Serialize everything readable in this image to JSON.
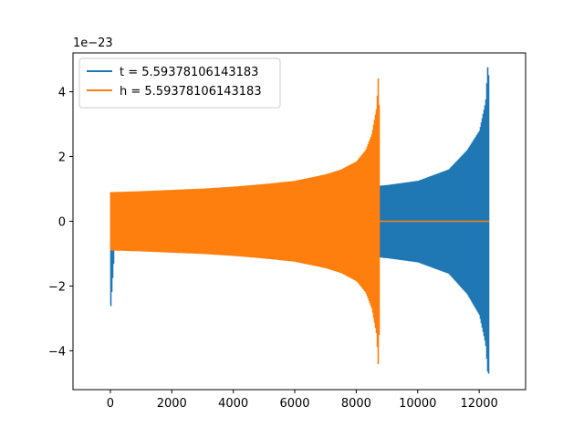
{
  "chart_data": {
    "type": "line",
    "title": "",
    "xlabel": "",
    "ylabel": "",
    "y_offset_label": "1e−23",
    "xlim": [
      -1215,
      13510
    ],
    "ylim": [
      -5.2,
      5.2
    ],
    "x_ticks": [
      0,
      2000,
      4000,
      6000,
      8000,
      10000,
      12000
    ],
    "y_ticks": [
      -4,
      -2,
      0,
      2,
      4
    ],
    "y_tick_labels": [
      "−4",
      "−2",
      "0",
      "2",
      "4"
    ],
    "grid": false,
    "legend_position": "upper-left",
    "series": [
      {
        "name": "t = 5.59378106143183",
        "color": "#1f77b4",
        "x": [
          0,
          120,
          1000,
          2000,
          3000,
          4000,
          5000,
          6000,
          7000,
          8000,
          8650,
          8720,
          8760,
          9000,
          10000,
          11000,
          11600,
          12000,
          12200,
          12270,
          12300
        ],
        "envelope_upper": [
          0.9,
          0.9,
          0.9,
          0.94,
          0.98,
          1.01,
          1.06,
          1.11,
          1.11,
          1.11,
          1.11,
          1.11,
          1.1,
          1.12,
          1.25,
          1.6,
          2.2,
          2.8,
          3.7,
          4.87,
          4.4
        ],
        "envelope_lower": [
          -2.65,
          -0.9,
          -0.9,
          -0.94,
          -0.98,
          -1.01,
          -1.06,
          -1.11,
          -1.11,
          -1.11,
          -1.11,
          -1.11,
          -1.12,
          -1.14,
          -1.27,
          -1.62,
          -2.25,
          -2.9,
          -3.8,
          -4.73,
          -4.7
        ]
      },
      {
        "name": "h = 5.59378106143183",
        "color": "#ff7f0e",
        "x": [
          0,
          1000,
          2000,
          3000,
          4000,
          5000,
          6000,
          7000,
          7500,
          8000,
          8300,
          8500,
          8650,
          8700,
          8720,
          8760,
          12300
        ],
        "envelope_upper": [
          0.9,
          0.93,
          0.97,
          1.01,
          1.07,
          1.15,
          1.25,
          1.45,
          1.6,
          1.85,
          2.2,
          2.7,
          3.5,
          4.4,
          4.85,
          0,
          0
        ],
        "envelope_lower": [
          -0.9,
          -0.93,
          -0.97,
          -1.01,
          -1.07,
          -1.15,
          -1.25,
          -1.45,
          -1.6,
          -1.85,
          -2.2,
          -2.7,
          -3.5,
          -4.4,
          -4.73,
          0,
          0
        ]
      }
    ]
  }
}
